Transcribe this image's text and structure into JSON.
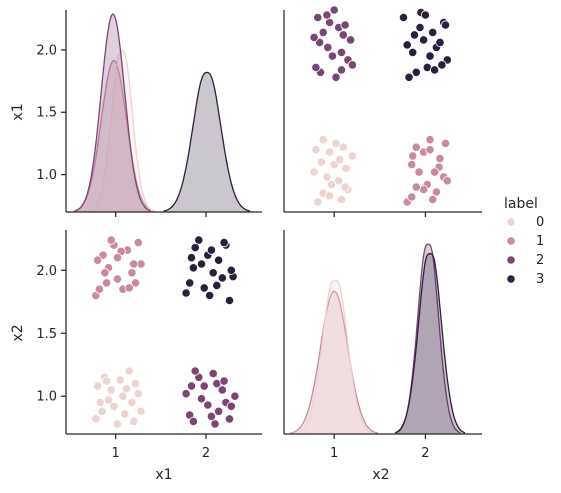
{
  "chart_data": {
    "type": "pairplot",
    "variables": [
      "x1",
      "x2"
    ],
    "hue": "label",
    "legend": {
      "title": "label",
      "placement": "center-right",
      "entries": [
        "0",
        "1",
        "2",
        "3"
      ]
    },
    "colors": {
      "0": "#eed3d1",
      "1": "#c98a9f",
      "2": "#7b4575",
      "3": "#2d1e3e"
    },
    "x_ticks": [
      1,
      2
    ],
    "y_ticks": [
      1.0,
      1.5,
      2.0
    ],
    "y_tick_labels": [
      "1.0",
      "1.5",
      "2.0"
    ],
    "x_tick_labels": [
      "1",
      "2"
    ],
    "xlim": [
      0.45,
      2.62
    ],
    "ylim": [
      0.7,
      2.32
    ],
    "grid": false,
    "points": {
      "0": [
        [
          0.78,
          0.82
        ],
        [
          0.85,
          0.88
        ],
        [
          0.92,
          0.97
        ],
        [
          0.95,
          1.05
        ],
        [
          1.02,
          0.78
        ],
        [
          1.05,
          1.13
        ],
        [
          1.1,
          0.86
        ],
        [
          1.15,
          1.2
        ],
        [
          1.2,
          0.8
        ],
        [
          1.25,
          1.02
        ],
        [
          0.8,
          1.08
        ],
        [
          0.88,
          1.15
        ],
        [
          0.98,
          0.92
        ],
        [
          1.08,
          1.0
        ],
        [
          1.18,
          0.95
        ],
        [
          1.22,
          1.1
        ],
        [
          0.83,
          0.95
        ],
        [
          1.12,
          1.06
        ],
        [
          0.9,
          1.12
        ],
        [
          1.28,
          0.88
        ]
      ],
      "1": [
        [
          0.78,
          1.8
        ],
        [
          0.82,
          1.85
        ],
        [
          0.86,
          2.12
        ],
        [
          0.92,
          2.02
        ],
        [
          0.98,
          2.2
        ],
        [
          1.02,
          1.93
        ],
        [
          1.08,
          1.85
        ],
        [
          1.13,
          2.16
        ],
        [
          1.18,
          1.98
        ],
        [
          1.22,
          1.9
        ],
        [
          1.28,
          2.05
        ],
        [
          0.88,
          1.98
        ],
        [
          0.95,
          2.24
        ],
        [
          1.06,
          2.15
        ],
        [
          1.15,
          1.86
        ],
        [
          1.25,
          2.22
        ],
        [
          0.8,
          2.08
        ],
        [
          1.02,
          2.1
        ],
        [
          1.2,
          2.05
        ],
        [
          0.9,
          1.9
        ]
      ],
      "2": [
        [
          1.78,
          1.02
        ],
        [
          1.82,
          0.85
        ],
        [
          1.86,
          0.8
        ],
        [
          1.92,
          1.15
        ],
        [
          1.98,
          1.08
        ],
        [
          2.02,
          0.93
        ],
        [
          2.08,
          1.18
        ],
        [
          2.14,
          0.88
        ],
        [
          2.18,
          1.05
        ],
        [
          2.22,
          0.95
        ],
        [
          2.26,
          0.82
        ],
        [
          2.32,
          1.0
        ],
        [
          1.88,
          1.2
        ],
        [
          1.95,
          0.98
        ],
        [
          2.06,
          0.84
        ],
        [
          2.12,
          1.1
        ],
        [
          2.2,
          1.12
        ],
        [
          1.84,
          1.08
        ],
        [
          2.28,
          0.92
        ],
        [
          2.1,
          0.78
        ]
      ],
      "3": [
        [
          1.78,
          1.82
        ],
        [
          1.82,
          1.9
        ],
        [
          1.86,
          2.02
        ],
        [
          1.92,
          2.24
        ],
        [
          1.98,
          1.86
        ],
        [
          2.02,
          2.12
        ],
        [
          2.08,
          1.98
        ],
        [
          2.14,
          2.08
        ],
        [
          2.18,
          1.94
        ],
        [
          2.22,
          2.2
        ],
        [
          2.26,
          1.76
        ],
        [
          2.3,
          1.95
        ],
        [
          1.88,
          2.18
        ],
        [
          1.95,
          2.05
        ],
        [
          2.06,
          2.16
        ],
        [
          2.12,
          1.88
        ],
        [
          2.2,
          2.22
        ],
        [
          1.84,
          2.1
        ],
        [
          2.04,
          1.8
        ],
        [
          2.28,
          2.0
        ]
      ]
    },
    "kde": {
      "x1": {
        "0": {
          "center": 1.07,
          "sd": 0.11,
          "peak": 0.84,
          "dip": 0.05
        },
        "1": {
          "center": 0.98,
          "sd": 0.14,
          "peak": 0.75,
          "dip": 0.0
        },
        "2": {
          "center": 0.97,
          "sd": 0.13,
          "peak": 0.98,
          "dip": 0.0
        },
        "3": {
          "center": 2.01,
          "sd": 0.15,
          "peak": 0.72,
          "dip": 0.04
        }
      },
      "x2": {
        "0": {
          "center": 1.01,
          "sd": 0.13,
          "peak": 0.8,
          "dip": 0.06
        },
        "1": {
          "center": 1.0,
          "sd": 0.15,
          "peak": 0.7,
          "dip": 0.0
        },
        "2": {
          "center": 2.03,
          "sd": 0.11,
          "peak": 0.98,
          "dip": 0.05
        },
        "3": {
          "center": 2.05,
          "sd": 0.12,
          "peak": 0.94,
          "dip": 0.06
        }
      }
    }
  }
}
